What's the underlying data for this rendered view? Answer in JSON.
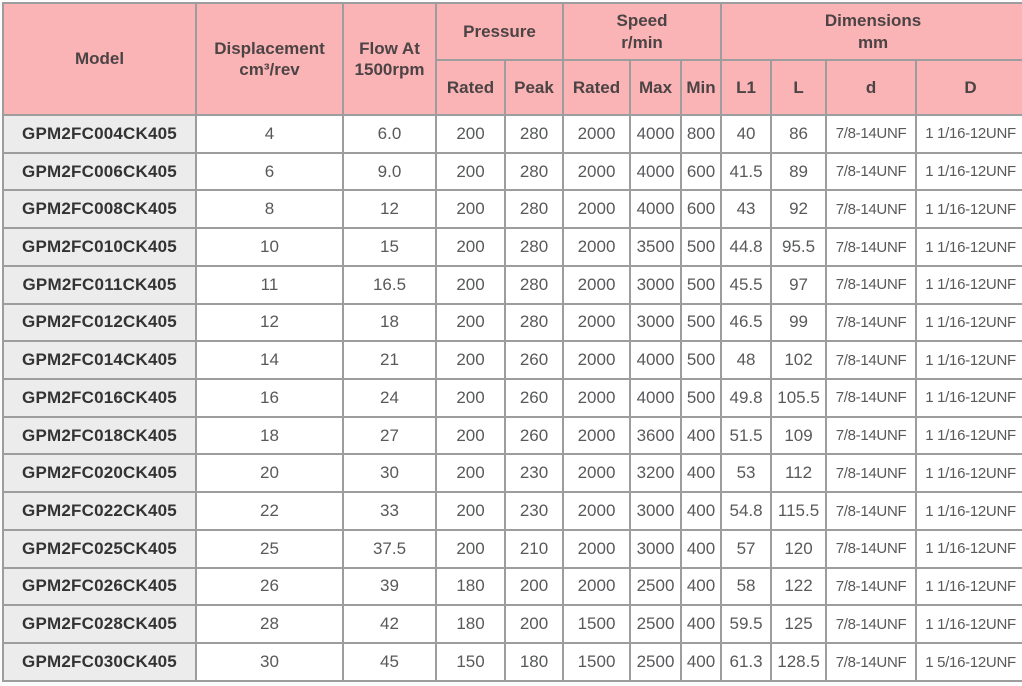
{
  "table": {
    "headers": {
      "model": "Model",
      "displacement": "Displacement\ncm³/rev",
      "flow": "Flow At\n1500rpm",
      "pressure_group": "Pressure",
      "speed_group": "Speed\nr/min",
      "dimensions_group": "Dimensions\nmm",
      "pressure_rated": "Rated",
      "pressure_peak": "Peak",
      "speed_rated": "Rated",
      "speed_max": "Max",
      "speed_min": "Min",
      "dim_l1": "L1",
      "dim_l": "L",
      "dim_d": "d",
      "dim_D": "D"
    },
    "rows": [
      [
        "GPM2FC004CK405",
        "4",
        "6.0",
        "200",
        "280",
        "2000",
        "4000",
        "800",
        "40",
        "86",
        "7/8-14UNF",
        "1 1/16-12UNF"
      ],
      [
        "GPM2FC006CK405",
        "6",
        "9.0",
        "200",
        "280",
        "2000",
        "4000",
        "600",
        "41.5",
        "89",
        "7/8-14UNF",
        "1 1/16-12UNF"
      ],
      [
        "GPM2FC008CK405",
        "8",
        "12",
        "200",
        "280",
        "2000",
        "4000",
        "600",
        "43",
        "92",
        "7/8-14UNF",
        "1 1/16-12UNF"
      ],
      [
        "GPM2FC010CK405",
        "10",
        "15",
        "200",
        "280",
        "2000",
        "3500",
        "500",
        "44.8",
        "95.5",
        "7/8-14UNF",
        "1 1/16-12UNF"
      ],
      [
        "GPM2FC011CK405",
        "11",
        "16.5",
        "200",
        "280",
        "2000",
        "3000",
        "500",
        "45.5",
        "97",
        "7/8-14UNF",
        "1 1/16-12UNF"
      ],
      [
        "GPM2FC012CK405",
        "12",
        "18",
        "200",
        "280",
        "2000",
        "3000",
        "500",
        "46.5",
        "99",
        "7/8-14UNF",
        "1 1/16-12UNF"
      ],
      [
        "GPM2FC014CK405",
        "14",
        "21",
        "200",
        "260",
        "2000",
        "4000",
        "500",
        "48",
        "102",
        "7/8-14UNF",
        "1 1/16-12UNF"
      ],
      [
        "GPM2FC016CK405",
        "16",
        "24",
        "200",
        "260",
        "2000",
        "4000",
        "500",
        "49.8",
        "105.5",
        "7/8-14UNF",
        "1 1/16-12UNF"
      ],
      [
        "GPM2FC018CK405",
        "18",
        "27",
        "200",
        "260",
        "2000",
        "3600",
        "400",
        "51.5",
        "109",
        "7/8-14UNF",
        "1 1/16-12UNF"
      ],
      [
        "GPM2FC020CK405",
        "20",
        "30",
        "200",
        "230",
        "2000",
        "3200",
        "400",
        "53",
        "112",
        "7/8-14UNF",
        "1 1/16-12UNF"
      ],
      [
        "GPM2FC022CK405",
        "22",
        "33",
        "200",
        "230",
        "2000",
        "3000",
        "400",
        "54.8",
        "115.5",
        "7/8-14UNF",
        "1 1/16-12UNF"
      ],
      [
        "GPM2FC025CK405",
        "25",
        "37.5",
        "200",
        "210",
        "2000",
        "3000",
        "400",
        "57",
        "120",
        "7/8-14UNF",
        "1 1/16-12UNF"
      ],
      [
        "GPM2FC026CK405",
        "26",
        "39",
        "180",
        "200",
        "2000",
        "2500",
        "400",
        "58",
        "122",
        "7/8-14UNF",
        "1 1/16-12UNF"
      ],
      [
        "GPM2FC028CK405",
        "28",
        "42",
        "180",
        "200",
        "1500",
        "2500",
        "400",
        "59.5",
        "125",
        "7/8-14UNF",
        "1 1/16-12UNF"
      ],
      [
        "GPM2FC030CK405",
        "30",
        "45",
        "150",
        "180",
        "1500",
        "2500",
        "400",
        "61.3",
        "128.5",
        "7/8-14UNF",
        "1 5/16-12UNF"
      ]
    ]
  },
  "colors": {
    "header_bg": "#FAB4B6",
    "header_text": "#4C4345",
    "border": "#9D9D9D",
    "model_cell_bg": "#ECECEC",
    "model_cell_text": "#333333",
    "data_cell_text": "#58595B",
    "data_cell_bg": "#FFFFFF"
  }
}
